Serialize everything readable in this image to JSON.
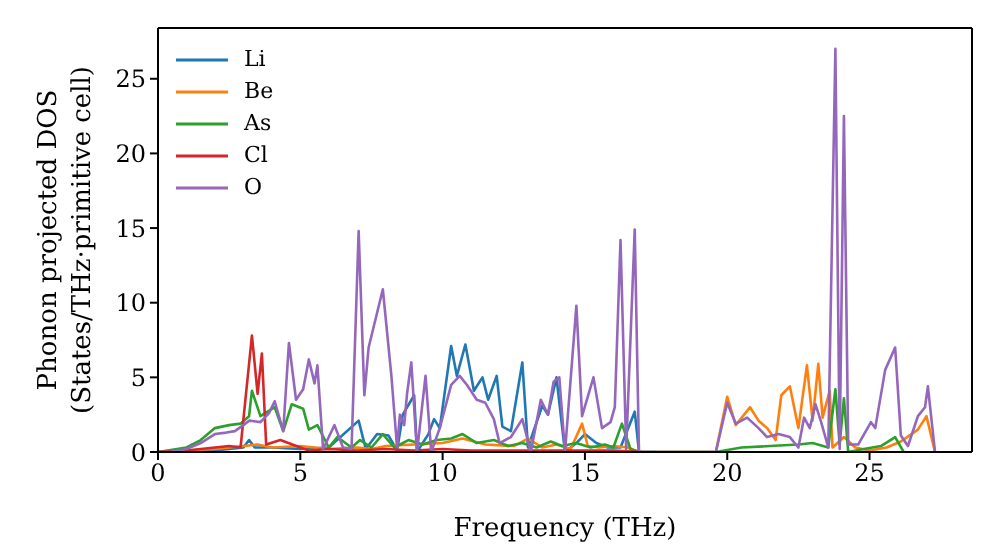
{
  "chart_data": {
    "type": "line",
    "xlabel": "Frequency (THz)",
    "ylabel": "Phonon projected DOS\n(States/THz·primitive cell)",
    "xlim": [
      0,
      28.6
    ],
    "xticks": [
      0,
      5,
      10,
      15,
      20,
      25
    ],
    "ylim": [
      0,
      28.4
    ],
    "yticks": [
      0,
      5,
      10,
      15,
      20,
      25
    ],
    "legend": "top left",
    "grid": false,
    "series": [
      {
        "name": "Li",
        "color": "#1f77b4",
        "x": [
          0,
          2,
          3.0,
          3.2,
          3.4,
          4,
          5,
          6,
          7.05,
          7.3,
          7.7,
          8.1,
          8.4,
          8.6,
          9.0,
          9.1,
          9.5,
          9.7,
          9.9,
          10.3,
          10.5,
          10.8,
          11.1,
          11.4,
          11.6,
          11.9,
          12.1,
          12.4,
          12.8,
          13.0,
          13.5,
          13.7,
          14.0,
          14.3,
          14.7,
          15.0,
          15.4,
          15.8,
          16.25,
          16.75,
          16.9,
          17.5
        ],
        "values": [
          0,
          0.1,
          0.3,
          0.8,
          0.3,
          0.3,
          0.2,
          0.3,
          2.1,
          0.2,
          1.2,
          1.1,
          0.1,
          2.5,
          3.8,
          0,
          1.2,
          2.2,
          1.6,
          7.1,
          5.1,
          7.2,
          4.1,
          5.0,
          3.5,
          5.1,
          1.7,
          1.4,
          6.0,
          0.3,
          3.1,
          2.5,
          5.0,
          0,
          0.6,
          1.2,
          0.6,
          0.3,
          0.3,
          2.7,
          0,
          0
        ]
      },
      {
        "name": "Be",
        "color": "#ff7f0e",
        "x": [
          0,
          1,
          2,
          3,
          3.5,
          4,
          5,
          6,
          7,
          7.5,
          8,
          9,
          10,
          10.7,
          11.5,
          12.5,
          13.0,
          13.5,
          14.0,
          14.5,
          14.9,
          15.1,
          15.5,
          16,
          16.5,
          16.9,
          17.5,
          19.6,
          20.0,
          20.3,
          20.8,
          21.1,
          21.4,
          21.7,
          21.9,
          22.2,
          22.5,
          22.8,
          23.0,
          23.2,
          23.35,
          23.6,
          23.7,
          24.1,
          24.5,
          25.0,
          25.6,
          26.1,
          26.7,
          27.0,
          27.3
        ],
        "values": [
          0,
          0.1,
          0.2,
          0.4,
          0.5,
          0.3,
          0.4,
          0.2,
          0.3,
          0.2,
          0.4,
          0.5,
          0.6,
          0.9,
          0.5,
          0.4,
          0.9,
          0.3,
          0.5,
          0.2,
          1.9,
          0.4,
          0.3,
          0.4,
          0.3,
          0,
          0,
          0,
          3.7,
          1.8,
          3.0,
          2.1,
          1.6,
          0.8,
          3.8,
          4.4,
          1.6,
          5.8,
          2.1,
          5.9,
          2.3,
          4.1,
          0.3,
          1.0,
          0.3,
          0.1,
          0.3,
          0.7,
          1.5,
          2.4,
          0
        ]
      },
      {
        "name": "As",
        "color": "#2ca02c",
        "x": [
          0,
          1,
          1.5,
          2,
          2.5,
          2.9,
          3.2,
          3.3,
          3.6,
          4.1,
          4.4,
          4.7,
          5.1,
          5.3,
          5.6,
          6.0,
          6.3,
          6.8,
          7.1,
          7.5,
          7.9,
          8.3,
          8.8,
          9.3,
          9.8,
          10.3,
          10.7,
          11.2,
          11.8,
          12.3,
          12.8,
          13.3,
          13.8,
          14.2,
          14.7,
          15.2,
          15.7,
          16.0,
          16.3,
          16.6,
          16.9,
          17.5,
          19.6,
          20.5,
          21.5,
          22.5,
          23.0,
          23.55,
          23.8,
          23.95,
          24.1,
          24.25,
          24.8,
          25.4,
          25.9,
          26.2
        ],
        "values": [
          0,
          0.3,
          0.8,
          1.6,
          1.8,
          1.9,
          2.4,
          4.1,
          2.4,
          3.0,
          1.4,
          3.2,
          2.9,
          1.5,
          1.8,
          0.3,
          1.0,
          0.3,
          0.8,
          0.3,
          1.2,
          0.3,
          0.8,
          0.5,
          0.8,
          0.9,
          1.2,
          0.6,
          0.8,
          0.4,
          0.6,
          0.3,
          0.7,
          0.4,
          0.6,
          0.3,
          0.5,
          0.3,
          1.9,
          0.2,
          0,
          0,
          0,
          0.3,
          0.4,
          0.5,
          0.6,
          0.3,
          4.2,
          0.5,
          3.6,
          0,
          0.2,
          0.4,
          1.0,
          0
        ]
      },
      {
        "name": "Cl",
        "color": "#d62728",
        "x": [
          0,
          1,
          2,
          2.5,
          2.9,
          3.3,
          3.5,
          3.65,
          3.8,
          4.3,
          5.0,
          5.3,
          6,
          7,
          8,
          9,
          10,
          11,
          12,
          13,
          14,
          15,
          16,
          17
        ],
        "values": [
          0,
          0.1,
          0.3,
          0.4,
          0.3,
          7.8,
          3.9,
          6.6,
          0.5,
          0.8,
          0.3,
          0.1,
          0.2,
          0.1,
          0.2,
          0.1,
          0.2,
          0.1,
          0.1,
          0.1,
          0.1,
          0.1,
          0.1,
          0
        ]
      },
      {
        "name": "O",
        "color": "#9467bd",
        "x": [
          0.4,
          1,
          1.5,
          2,
          2.4,
          2.7,
          3.0,
          3.2,
          3.6,
          3.9,
          4.1,
          4.4,
          4.6,
          4.85,
          5.1,
          5.3,
          5.5,
          5.6,
          5.8,
          6.2,
          6.5,
          6.8,
          7.05,
          7.25,
          7.4,
          7.9,
          8.2,
          8.4,
          8.5,
          8.65,
          8.75,
          8.9,
          9.1,
          9.4,
          9.6,
          9.9,
          10.3,
          10.6,
          10.85,
          11.2,
          11.5,
          11.8,
          12.0,
          12.4,
          12.8,
          13.1,
          13.45,
          13.7,
          13.9,
          14.1,
          14.3,
          14.7,
          14.9,
          15.3,
          15.6,
          15.9,
          16.05,
          16.25,
          16.45,
          16.75,
          16.9,
          19.6,
          20.0,
          20.3,
          20.7,
          21.1,
          21.4,
          21.8,
          22.2,
          22.5,
          22.7,
          22.9,
          23.1,
          23.3,
          23.55,
          23.8,
          23.95,
          24.1,
          24.25,
          24.6,
          25.05,
          25.2,
          25.55,
          25.9,
          26.1,
          26.35,
          26.7,
          26.95,
          27.05,
          27.3
        ],
        "values": [
          0,
          0.2,
          0.6,
          1.2,
          1.3,
          1.4,
          1.8,
          2.1,
          2.0,
          2.6,
          3.4,
          1.4,
          7.3,
          3.5,
          4.2,
          6.2,
          4.6,
          5.8,
          0.2,
          1.8,
          0.3,
          0.2,
          14.8,
          3.8,
          7.0,
          10.9,
          5.1,
          0.3,
          2.5,
          1.8,
          3.9,
          6.0,
          0,
          5.1,
          0,
          1.6,
          4.5,
          5.1,
          4.5,
          3.5,
          3.3,
          2.2,
          0.6,
          1.0,
          2.2,
          0,
          3.5,
          2.5,
          4.7,
          5.0,
          0,
          9.8,
          2.4,
          5.0,
          1.6,
          2.0,
          3.0,
          14.2,
          0.2,
          14.9,
          0,
          0,
          3.3,
          1.9,
          2.3,
          1.6,
          1.0,
          1.2,
          1.0,
          0.3,
          2.3,
          1.6,
          3.2,
          2.0,
          0.3,
          27.0,
          0.2,
          22.5,
          0.5,
          0.5,
          2.0,
          1.6,
          5.5,
          7.0,
          1.1,
          0.4,
          2.4,
          3.0,
          4.4,
          0
        ]
      }
    ]
  }
}
